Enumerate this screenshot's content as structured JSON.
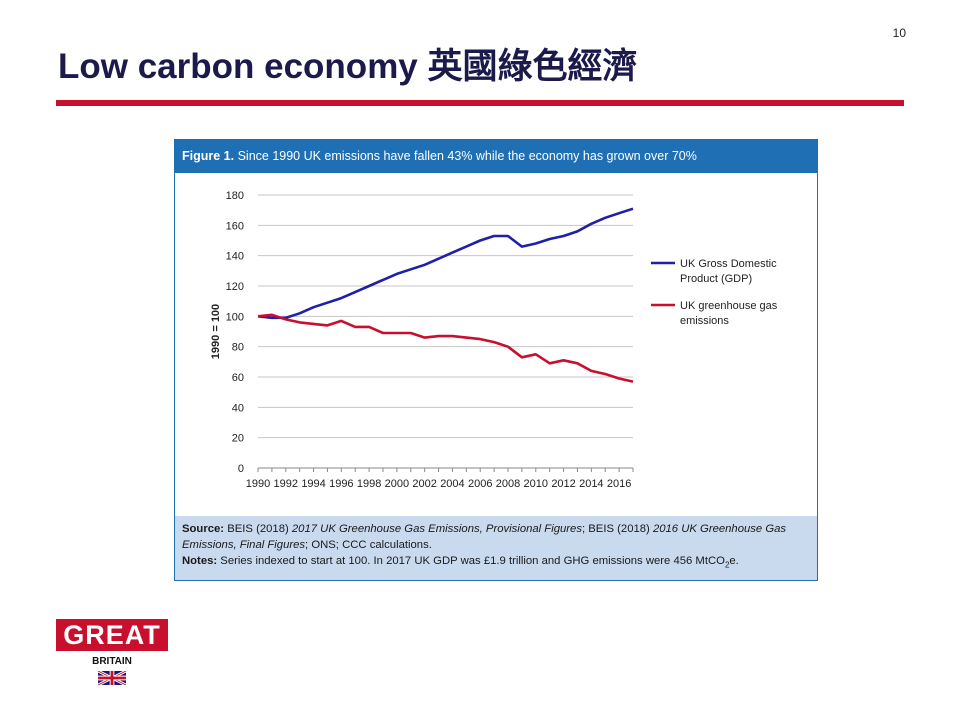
{
  "page_number": "10",
  "title": "Low carbon economy 英國綠色經濟",
  "figure": {
    "label": "Figure 1.",
    "heading": "Since 1990 UK emissions have fallen 43% while the economy has grown over 70%",
    "source_label": "Source:",
    "source_1": "BEIS (2018) ",
    "source_2": "2017 UK Greenhouse Gas Emissions, Provisional Figures",
    "source_3": "; BEIS (2018) ",
    "source_4": "2016 UK Greenhouse Gas",
    "source_5": "Emissions, Final Figures",
    "source_6": "; ONS; CCC calculations.",
    "notes_label": "Notes:",
    "notes_text_a": "Series indexed to start at 100. In 2017 UK GDP was £1.9 trillion and GHG emissions were 456 MtCO",
    "notes_sub": "2",
    "notes_text_b": "e."
  },
  "colors": {
    "gdp": "#1f1fa8",
    "ghg": "#c8102e",
    "header": "#1f6fb5",
    "footer": "#c9d9ee",
    "brand_red": "#c8102e"
  },
  "logo": {
    "top": "GREAT",
    "bottom": "BRITAIN",
    "flag_icon": "union-flag-icon"
  },
  "chart_data": {
    "type": "line",
    "title": "Figure 1. Since 1990 UK emissions have fallen 43% while the economy has grown over 70%",
    "xlabel": "",
    "ylabel": "1990 = 100",
    "ylim": [
      0,
      180
    ],
    "xlim": [
      1990,
      2017
    ],
    "y_ticks": [
      0,
      20,
      40,
      60,
      80,
      100,
      120,
      140,
      160,
      180
    ],
    "x_ticks": [
      1990,
      1992,
      1994,
      1996,
      1998,
      2000,
      2002,
      2004,
      2006,
      2008,
      2010,
      2012,
      2014,
      2016
    ],
    "grid": "horizontal",
    "legend_position": "right",
    "x": [
      1990,
      1991,
      1992,
      1993,
      1994,
      1995,
      1996,
      1997,
      1998,
      1999,
      2000,
      2001,
      2002,
      2003,
      2004,
      2005,
      2006,
      2007,
      2008,
      2009,
      2010,
      2011,
      2012,
      2013,
      2014,
      2015,
      2016,
      2017
    ],
    "series": [
      {
        "name": "UK Gross Domestic Product (GDP)",
        "legend_lines": [
          "UK Gross Domestic",
          "Product (GDP)"
        ],
        "values": [
          100,
          99,
          99,
          102,
          106,
          109,
          112,
          116,
          120,
          124,
          128,
          131,
          134,
          138,
          142,
          146,
          150,
          153,
          153,
          146,
          148,
          151,
          153,
          156,
          161,
          165,
          168,
          171
        ]
      },
      {
        "name": "UK greenhouse gas emissions",
        "legend_lines": [
          "UK greenhouse gas",
          "emissions"
        ],
        "values": [
          100,
          101,
          98,
          96,
          95,
          94,
          97,
          93,
          93,
          89,
          89,
          89,
          86,
          87,
          87,
          86,
          85,
          83,
          80,
          73,
          75,
          69,
          71,
          69,
          64,
          62,
          59,
          57
        ]
      }
    ]
  }
}
